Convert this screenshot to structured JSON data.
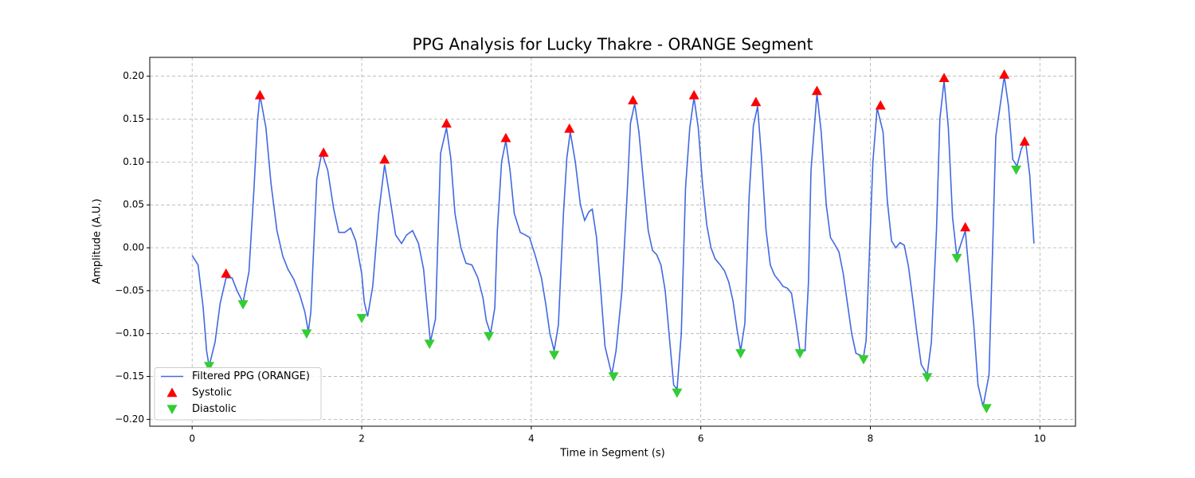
{
  "chart_data": {
    "type": "line",
    "title": "PPG Analysis for Lucky Thakre - ORANGE Segment",
    "x_label": "Time in Segment (s)",
    "y_label": "Amplitude (A.U.)",
    "xlim": [
      -0.5,
      10.42
    ],
    "ylim": [
      -0.208,
      0.222
    ],
    "xticks": [
      0,
      2,
      4,
      6,
      8,
      10
    ],
    "yticks": [
      {
        "value": -0.2,
        "label": "−0.20"
      },
      {
        "value": -0.15,
        "label": "−0.15"
      },
      {
        "value": -0.1,
        "label": "−0.10"
      },
      {
        "value": -0.05,
        "label": "−0.05"
      },
      {
        "value": 0,
        "label": "0.00"
      },
      {
        "value": 0.05,
        "label": "0.05"
      },
      {
        "value": 0.1,
        "label": "0.10"
      },
      {
        "value": 0.15,
        "label": "0.15"
      },
      {
        "value": 0.2,
        "label": "0.20"
      }
    ],
    "grid": true,
    "legend": "lower left",
    "series": [
      {
        "name": "Filtered PPG (ORANGE)",
        "color": "#4169e1",
        "type": "line",
        "x": [
          0,
          0.07,
          0.13,
          0.17,
          0.2,
          0.27,
          0.33,
          0.4,
          0.47,
          0.53,
          0.6,
          0.67,
          0.73,
          0.77,
          0.8,
          0.87,
          0.93,
          1.0,
          1.07,
          1.13,
          1.2,
          1.27,
          1.33,
          1.37,
          1.4,
          1.47,
          1.53,
          1.6,
          1.67,
          1.73,
          1.8,
          1.87,
          1.93,
          2.0,
          2.03,
          2.07,
          2.13,
          2.2,
          2.27,
          2.33,
          2.4,
          2.47,
          2.53,
          2.6,
          2.67,
          2.73,
          2.81,
          2.87,
          2.93,
          3.0,
          3.05,
          3.1,
          3.17,
          3.23,
          3.3,
          3.37,
          3.43,
          3.47,
          3.52,
          3.57,
          3.6,
          3.65,
          3.7,
          3.75,
          3.8,
          3.87,
          3.93,
          3.98,
          4.05,
          4.12,
          4.17,
          4.22,
          4.27,
          4.32,
          4.38,
          4.42,
          4.46,
          4.52,
          4.58,
          4.63,
          4.68,
          4.72,
          4.77,
          4.82,
          4.87,
          4.95,
          5.0,
          5.07,
          5.13,
          5.17,
          5.22,
          5.27,
          5.33,
          5.38,
          5.43,
          5.48,
          5.53,
          5.58,
          5.63,
          5.68,
          5.72,
          5.77,
          5.82,
          5.87,
          5.92,
          5.97,
          6.02,
          6.07,
          6.12,
          6.17,
          6.23,
          6.28,
          6.33,
          6.38,
          6.43,
          6.47,
          6.52,
          6.57,
          6.62,
          6.67,
          6.72,
          6.77,
          6.82,
          6.87,
          6.92,
          6.97,
          7.02,
          7.07,
          7.12,
          7.17,
          7.23,
          7.27,
          7.3,
          7.37,
          7.42,
          7.48,
          7.53,
          7.58,
          7.63,
          7.68,
          7.73,
          7.78,
          7.83,
          7.92,
          7.95,
          8.03,
          8.08,
          8.15,
          8.2,
          8.25,
          8.3,
          8.35,
          8.4,
          8.45,
          8.5,
          8.55,
          8.6,
          8.67,
          8.72,
          8.78,
          8.82,
          8.87,
          8.92,
          8.97,
          9.02,
          9.07,
          9.12,
          9.17,
          9.22,
          9.27,
          9.33,
          9.4,
          9.48,
          9.58,
          9.63,
          9.68,
          9.73,
          9.78,
          9.83,
          9.88,
          9.93
        ],
        "values": [
          -0.009,
          -0.02,
          -0.07,
          -0.12,
          -0.138,
          -0.11,
          -0.065,
          -0.035,
          -0.035,
          -0.05,
          -0.064,
          -0.028,
          0.07,
          0.147,
          0.178,
          0.14,
          0.075,
          0.02,
          -0.01,
          -0.025,
          -0.037,
          -0.055,
          -0.075,
          -0.098,
          -0.075,
          0.08,
          0.111,
          0.09,
          0.045,
          0.018,
          0.018,
          0.023,
          0.008,
          -0.03,
          -0.063,
          -0.08,
          -0.045,
          0.04,
          0.097,
          0.06,
          0.015,
          0.005,
          0.015,
          0.02,
          0.005,
          -0.025,
          -0.11,
          -0.083,
          0.11,
          0.14,
          0.105,
          0.04,
          0.0,
          -0.018,
          -0.02,
          -0.035,
          -0.058,
          -0.085,
          -0.1,
          -0.07,
          0.02,
          0.1,
          0.125,
          0.09,
          0.04,
          0.018,
          0.015,
          0.012,
          -0.01,
          -0.035,
          -0.065,
          -0.1,
          -0.12,
          -0.09,
          0.04,
          0.105,
          0.135,
          0.1,
          0.05,
          0.032,
          0.042,
          0.045,
          0.012,
          -0.05,
          -0.115,
          -0.148,
          -0.12,
          -0.05,
          0.06,
          0.145,
          0.168,
          0.135,
          0.07,
          0.02,
          -0.003,
          -0.008,
          -0.02,
          -0.05,
          -0.105,
          -0.16,
          -0.165,
          -0.1,
          0.07,
          0.14,
          0.175,
          0.14,
          0.075,
          0.027,
          0.0,
          -0.013,
          -0.02,
          -0.027,
          -0.04,
          -0.062,
          -0.097,
          -0.12,
          -0.088,
          0.06,
          0.142,
          0.165,
          0.1,
          0.02,
          -0.02,
          -0.032,
          -0.038,
          -0.045,
          -0.047,
          -0.053,
          -0.085,
          -0.12,
          -0.12,
          -0.04,
          0.09,
          0.18,
          0.135,
          0.05,
          0.012,
          0.004,
          -0.005,
          -0.03,
          -0.065,
          -0.1,
          -0.123,
          -0.127,
          -0.108,
          0.1,
          0.163,
          0.135,
          0.055,
          0.008,
          0.0,
          0.006,
          0.003,
          -0.022,
          -0.06,
          -0.1,
          -0.136,
          -0.148,
          -0.11,
          0.02,
          0.15,
          0.195,
          0.14,
          0.035,
          -0.01,
          0.005,
          0.02,
          -0.035,
          -0.09,
          -0.16,
          -0.185,
          -0.148,
          0.13,
          0.2,
          0.165,
          0.103,
          0.095,
          0.115,
          0.125,
          0.085,
          0.005
        ]
      },
      {
        "name": "Systolic",
        "color": "#ff0000",
        "type": "scatter",
        "marker": "triangle-up",
        "x": [
          0.4,
          0.8,
          1.55,
          2.27,
          3.0,
          3.7,
          4.45,
          5.2,
          5.92,
          6.65,
          7.37,
          8.12,
          8.87,
          9.12,
          9.58,
          9.82
        ],
        "values": [
          -0.03,
          0.178,
          0.111,
          0.103,
          0.145,
          0.128,
          0.139,
          0.172,
          0.178,
          0.17,
          0.183,
          0.166,
          0.198,
          0.024,
          0.202,
          0.124
        ]
      },
      {
        "name": "Diastolic",
        "color": "#32cd32",
        "type": "scatter",
        "marker": "triangle-down",
        "x": [
          0.2,
          0.6,
          1.35,
          2.0,
          2.8,
          3.5,
          4.27,
          4.97,
          5.72,
          6.47,
          7.17,
          7.92,
          8.67,
          9.02,
          9.37,
          9.72
        ],
        "values": [
          -0.138,
          -0.066,
          -0.1,
          -0.082,
          -0.112,
          -0.103,
          -0.125,
          -0.15,
          -0.169,
          -0.123,
          -0.123,
          -0.13,
          -0.151,
          -0.012,
          -0.187,
          0.091
        ]
      }
    ]
  }
}
